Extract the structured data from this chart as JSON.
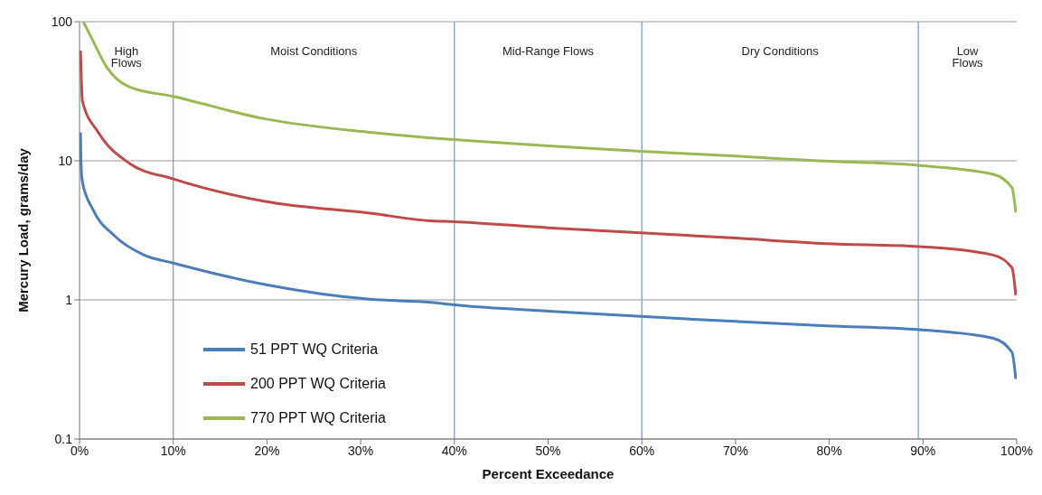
{
  "chart_data": {
    "type": "line",
    "xlabel": "Percent Exceedance",
    "ylabel": "Mercury Load, grams/day",
    "series": [
      {
        "name": "51 PPT WQ Criteria",
        "color": "#4a7ebb",
        "x": [
          0.1,
          0.15,
          0.3,
          1.4,
          3.7,
          6.9,
          10,
          19.8,
          31,
          37.5,
          40,
          50,
          59.9,
          70,
          79.7,
          89.6,
          97.5,
          99.5,
          99.9
        ],
        "values": [
          16,
          10,
          7.1,
          4.5,
          2.9,
          2.1,
          1.84,
          1.29,
          1.01,
          0.96,
          0.92,
          0.83,
          0.76,
          0.7,
          0.65,
          0.61,
          0.53,
          0.42,
          0.27
        ]
      },
      {
        "name": "200 PPT WQ Criteria",
        "color": "#be4b48",
        "x": [
          0.1,
          0.2,
          0.3,
          2,
          5.3,
          10,
          19.8,
          31,
          37.5,
          40,
          50,
          59.9,
          70,
          79.7,
          89.6,
          97.5,
          99.5,
          99.9
        ],
        "values": [
          62,
          38,
          27,
          16,
          9.6,
          7.4,
          5.1,
          4.2,
          3.7,
          3.65,
          3.3,
          3.04,
          2.78,
          2.54,
          2.42,
          2.1,
          1.7,
          1.08
        ]
      },
      {
        "name": "770 PPT WQ Criteria",
        "color": "#98b954",
        "x": [
          0.4,
          1.3,
          3,
          5.3,
          10,
          19.8,
          31,
          37.5,
          40,
          50,
          59.9,
          70,
          78.8,
          89.6,
          97.5,
          99.5,
          99.9
        ],
        "values": [
          100,
          76,
          46,
          34,
          29,
          20,
          16,
          14.6,
          14.2,
          12.8,
          11.7,
          10.8,
          10,
          9.25,
          8,
          6.4,
          4.25
        ]
      }
    ],
    "xlim": [
      0,
      100
    ],
    "xticks": [
      {
        "value": 0,
        "label": "0%"
      },
      {
        "value": 10,
        "label": "10%"
      },
      {
        "value": 20,
        "label": "20%"
      },
      {
        "value": 30,
        "label": "30%"
      },
      {
        "value": 40,
        "label": "40%"
      },
      {
        "value": 50,
        "label": "50%"
      },
      {
        "value": 60,
        "label": "60%"
      },
      {
        "value": 70,
        "label": "70%"
      },
      {
        "value": 80,
        "label": "80%"
      },
      {
        "value": 90,
        "label": "90%"
      },
      {
        "value": 100,
        "label": "100%"
      }
    ],
    "ylim": [
      0.1,
      100
    ],
    "yticks": [
      0.1,
      1,
      10,
      100
    ],
    "log": "y",
    "grid": "y",
    "legend": "bottom left",
    "marker": "none",
    "line_style": "solid",
    "ref_lines": [
      {
        "axis": "x",
        "value": 10,
        "color": "#7096c8"
      },
      {
        "axis": "x",
        "value": 40,
        "color": "#7096c8"
      },
      {
        "axis": "x",
        "value": 60,
        "color": "#7096c8"
      },
      {
        "axis": "x",
        "value": 89.5,
        "color": "#7096c8"
      }
    ],
    "annotations": [
      "High Flows",
      "Moist Conditions",
      "Mid-Range Flows",
      "Dry Conditions",
      "Low Flows"
    ]
  }
}
